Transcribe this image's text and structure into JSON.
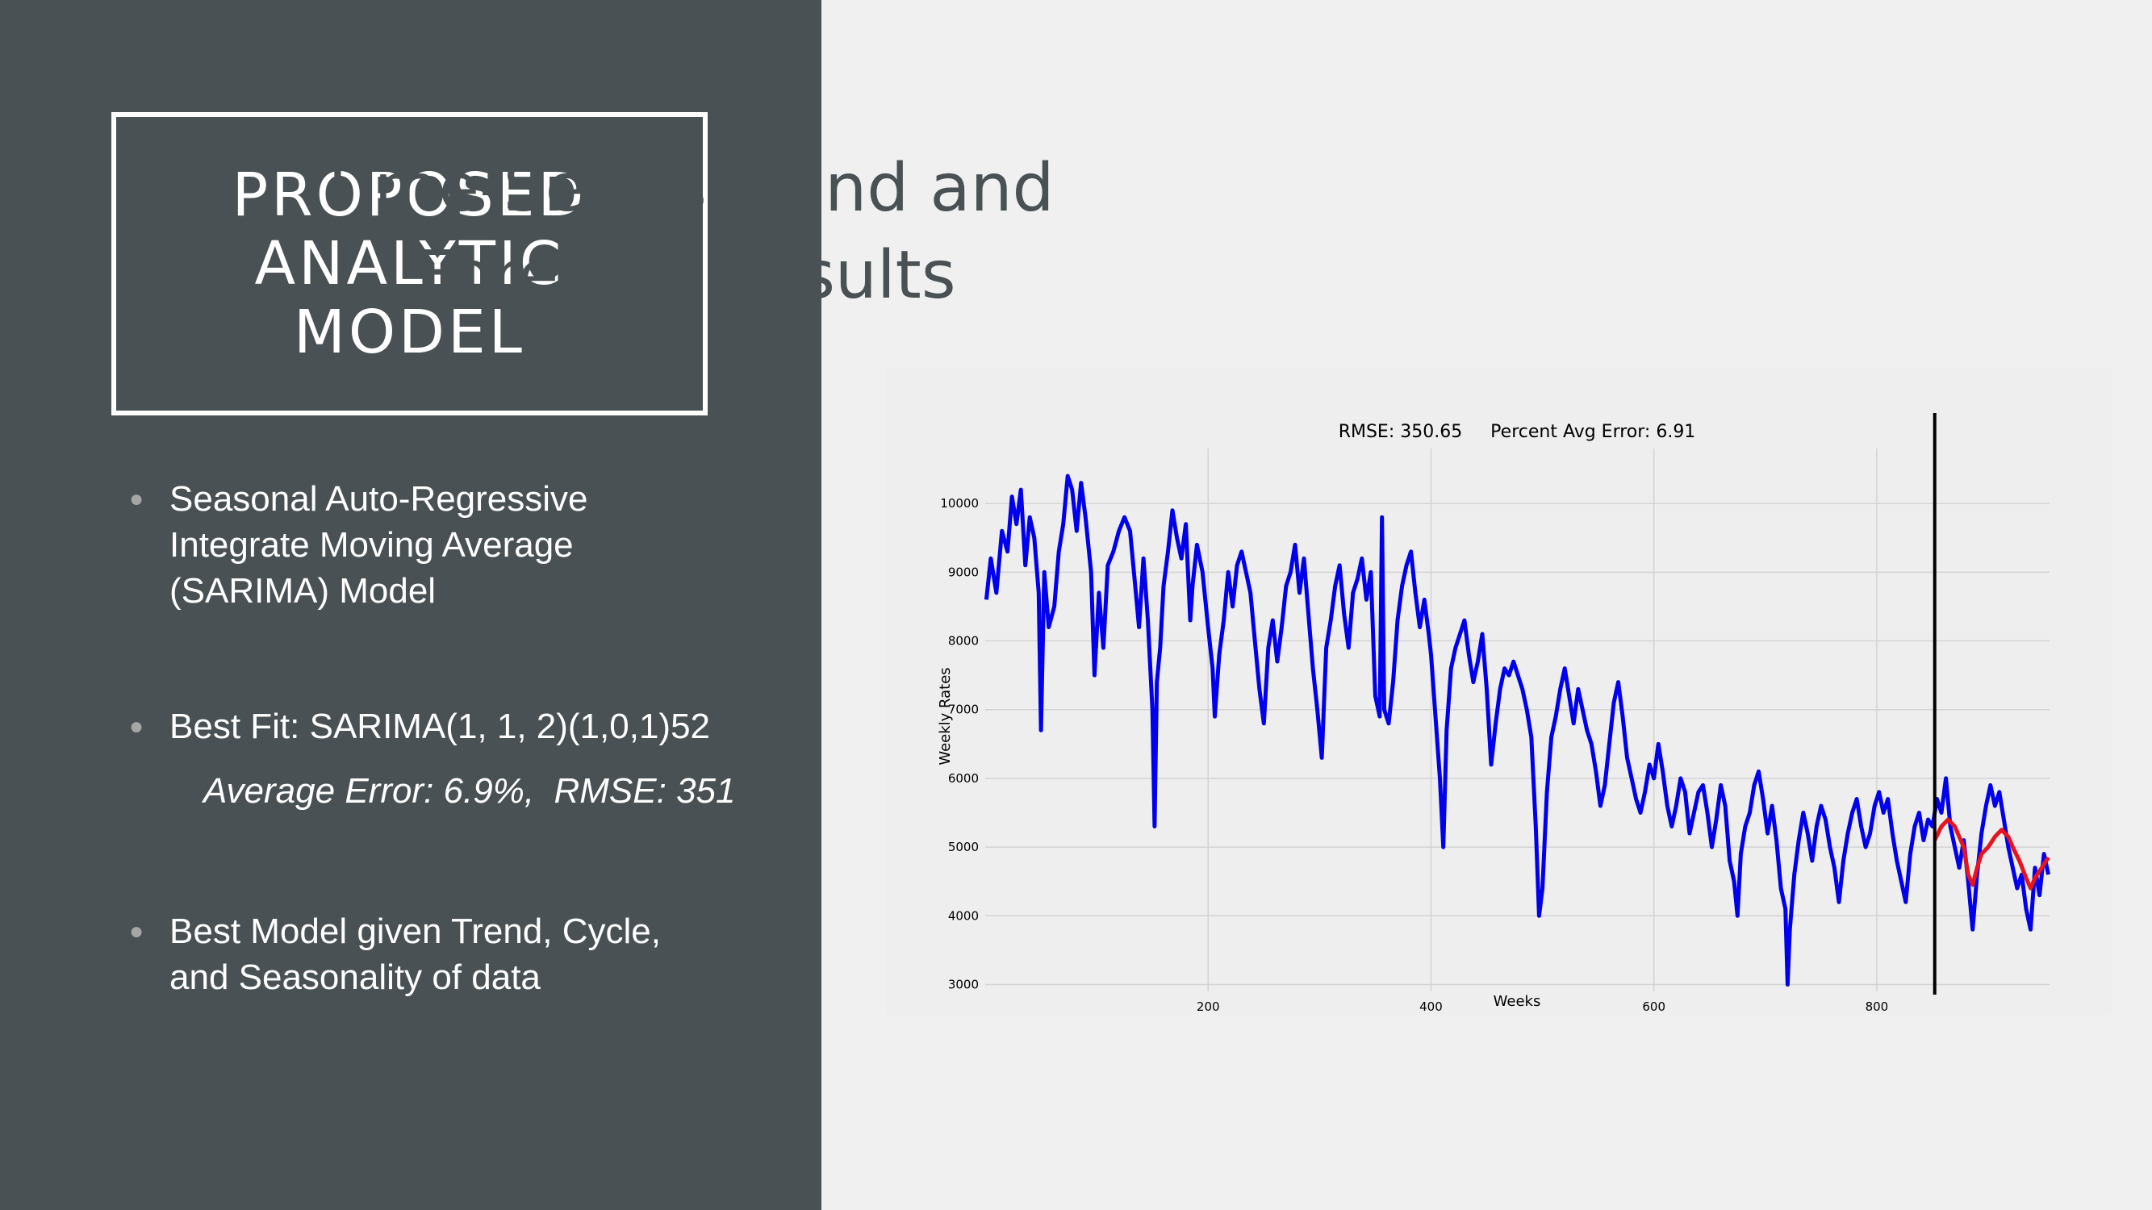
{
  "left": {
    "title_lines": [
      "PROPOSED",
      "ANALYTIC",
      "MODEL"
    ],
    "bullets": [
      {
        "lines": [
          "Seasonal Auto-Regressive",
          "Integrate Moving Average",
          "(SARIMA) Model"
        ]
      },
      {
        "lines": [
          "Best Fit: SARIMA(1, 1, 2)(1,0,1)52"
        ],
        "sub": "Average Error: 6.9%,  RMSE: 351"
      },
      {
        "lines": [
          "Best Model given Trend, Cycle,",
          "and Seasonality of data"
        ]
      }
    ]
  },
  "right": {
    "title_lines": [
      "Time-Series Trend and",
      "Forecast Results"
    ]
  },
  "colors": {
    "left_panel": "#495154",
    "right_panel": "#f0f0f0",
    "actual_series": "#0000ee",
    "forecast_series": "#e8131c",
    "split_line": "#000000"
  },
  "chart_data": {
    "type": "line",
    "title": "RMSE: 350.65     Percent Avg Error: 6.91",
    "xlabel": "Weeks",
    "ylabel": "Weekly Rates",
    "xlim": [
      0,
      955
    ],
    "ylim": [
      2900,
      10800
    ],
    "xticks": [
      200,
      400,
      600,
      800
    ],
    "yticks": [
      3000,
      4000,
      5000,
      6000,
      7000,
      8000,
      9000,
      10000
    ],
    "grid": true,
    "split_x": 852,
    "series": [
      {
        "key": "actual",
        "color": "#0000ee",
        "points": [
          [
            1,
            8600
          ],
          [
            5,
            9200
          ],
          [
            10,
            8700
          ],
          [
            15,
            9600
          ],
          [
            20,
            9300
          ],
          [
            24,
            10100
          ],
          [
            28,
            9700
          ],
          [
            32,
            10200
          ],
          [
            36,
            9100
          ],
          [
            40,
            9800
          ],
          [
            44,
            9500
          ],
          [
            48,
            8700
          ],
          [
            50,
            6700
          ],
          [
            53,
            9000
          ],
          [
            57,
            8200
          ],
          [
            62,
            8500
          ],
          [
            66,
            9300
          ],
          [
            70,
            9700
          ],
          [
            74,
            10400
          ],
          [
            78,
            10200
          ],
          [
            82,
            9600
          ],
          [
            86,
            10300
          ],
          [
            90,
            9800
          ],
          [
            95,
            9000
          ],
          [
            98,
            7500
          ],
          [
            102,
            8700
          ],
          [
            106,
            7900
          ],
          [
            110,
            9100
          ],
          [
            115,
            9300
          ],
          [
            120,
            9600
          ],
          [
            125,
            9800
          ],
          [
            130,
            9600
          ],
          [
            134,
            8900
          ],
          [
            138,
            8200
          ],
          [
            142,
            9200
          ],
          [
            146,
            8300
          ],
          [
            150,
            7000
          ],
          [
            152,
            5300
          ],
          [
            154,
            7400
          ],
          [
            157,
            7900
          ],
          [
            160,
            8800
          ],
          [
            164,
            9300
          ],
          [
            168,
            9900
          ],
          [
            172,
            9500
          ],
          [
            176,
            9200
          ],
          [
            180,
            9700
          ],
          [
            184,
            8300
          ],
          [
            186,
            8800
          ],
          [
            190,
            9400
          ],
          [
            195,
            9000
          ],
          [
            200,
            8200
          ],
          [
            204,
            7600
          ],
          [
            206,
            6900
          ],
          [
            210,
            7800
          ],
          [
            214,
            8300
          ],
          [
            218,
            9000
          ],
          [
            222,
            8500
          ],
          [
            226,
            9100
          ],
          [
            230,
            9300
          ],
          [
            234,
            9000
          ],
          [
            238,
            8700
          ],
          [
            242,
            8000
          ],
          [
            246,
            7300
          ],
          [
            250,
            6800
          ],
          [
            254,
            7900
          ],
          [
            258,
            8300
          ],
          [
            262,
            7700
          ],
          [
            266,
            8200
          ],
          [
            270,
            8800
          ],
          [
            274,
            9000
          ],
          [
            278,
            9400
          ],
          [
            282,
            8700
          ],
          [
            286,
            9200
          ],
          [
            290,
            8400
          ],
          [
            294,
            7600
          ],
          [
            298,
            7000
          ],
          [
            302,
            6300
          ],
          [
            306,
            7900
          ],
          [
            310,
            8300
          ],
          [
            314,
            8800
          ],
          [
            318,
            9100
          ],
          [
            322,
            8400
          ],
          [
            326,
            7900
          ],
          [
            330,
            8700
          ],
          [
            334,
            8900
          ],
          [
            338,
            9200
          ],
          [
            342,
            8600
          ],
          [
            346,
            9000
          ],
          [
            350,
            7200
          ],
          [
            354,
            6900
          ],
          [
            356,
            9800
          ],
          [
            358,
            7000
          ],
          [
            362,
            6800
          ],
          [
            366,
            7400
          ],
          [
            370,
            8300
          ],
          [
            374,
            8800
          ],
          [
            378,
            9100
          ],
          [
            382,
            9300
          ],
          [
            386,
            8700
          ],
          [
            390,
            8200
          ],
          [
            394,
            8600
          ],
          [
            398,
            8100
          ],
          [
            400,
            7800
          ],
          [
            404,
            6900
          ],
          [
            408,
            6000
          ],
          [
            411,
            5000
          ],
          [
            414,
            6700
          ],
          [
            418,
            7600
          ],
          [
            422,
            7900
          ],
          [
            426,
            8100
          ],
          [
            430,
            8300
          ],
          [
            434,
            7800
          ],
          [
            438,
            7400
          ],
          [
            442,
            7700
          ],
          [
            446,
            8100
          ],
          [
            450,
            7300
          ],
          [
            454,
            6200
          ],
          [
            458,
            6800
          ],
          [
            462,
            7300
          ],
          [
            466,
            7600
          ],
          [
            470,
            7500
          ],
          [
            474,
            7700
          ],
          [
            478,
            7500
          ],
          [
            482,
            7300
          ],
          [
            486,
            7000
          ],
          [
            490,
            6600
          ],
          [
            494,
            5300
          ],
          [
            497,
            4000
          ],
          [
            500,
            4400
          ],
          [
            504,
            5800
          ],
          [
            508,
            6600
          ],
          [
            512,
            6900
          ],
          [
            516,
            7300
          ],
          [
            520,
            7600
          ],
          [
            524,
            7200
          ],
          [
            528,
            6800
          ],
          [
            532,
            7300
          ],
          [
            536,
            7000
          ],
          [
            540,
            6700
          ],
          [
            544,
            6500
          ],
          [
            548,
            6100
          ],
          [
            552,
            5600
          ],
          [
            556,
            5900
          ],
          [
            560,
            6500
          ],
          [
            564,
            7100
          ],
          [
            568,
            7400
          ],
          [
            572,
            6900
          ],
          [
            576,
            6300
          ],
          [
            580,
            6000
          ],
          [
            584,
            5700
          ],
          [
            588,
            5500
          ],
          [
            592,
            5800
          ],
          [
            596,
            6200
          ],
          [
            600,
            6000
          ],
          [
            604,
            6500
          ],
          [
            608,
            6100
          ],
          [
            612,
            5600
          ],
          [
            616,
            5300
          ],
          [
            620,
            5600
          ],
          [
            624,
            6000
          ],
          [
            628,
            5800
          ],
          [
            632,
            5200
          ],
          [
            636,
            5500
          ],
          [
            640,
            5800
          ],
          [
            644,
            5900
          ],
          [
            648,
            5500
          ],
          [
            652,
            5000
          ],
          [
            656,
            5400
          ],
          [
            660,
            5900
          ],
          [
            664,
            5600
          ],
          [
            668,
            4800
          ],
          [
            672,
            4500
          ],
          [
            675,
            4000
          ],
          [
            678,
            4900
          ],
          [
            682,
            5300
          ],
          [
            686,
            5500
          ],
          [
            690,
            5900
          ],
          [
            694,
            6100
          ],
          [
            698,
            5700
          ],
          [
            702,
            5200
          ],
          [
            706,
            5600
          ],
          [
            710,
            5100
          ],
          [
            714,
            4400
          ],
          [
            718,
            4100
          ],
          [
            720,
            3000
          ],
          [
            722,
            3800
          ],
          [
            726,
            4600
          ],
          [
            730,
            5100
          ],
          [
            734,
            5500
          ],
          [
            738,
            5200
          ],
          [
            742,
            4800
          ],
          [
            746,
            5300
          ],
          [
            750,
            5600
          ],
          [
            754,
            5400
          ],
          [
            758,
            5000
          ],
          [
            762,
            4700
          ],
          [
            766,
            4200
          ],
          [
            770,
            4800
          ],
          [
            774,
            5200
          ],
          [
            778,
            5500
          ],
          [
            782,
            5700
          ],
          [
            786,
            5300
          ],
          [
            790,
            5000
          ],
          [
            794,
            5200
          ],
          [
            798,
            5600
          ],
          [
            802,
            5800
          ],
          [
            806,
            5500
          ],
          [
            810,
            5700
          ],
          [
            814,
            5200
          ],
          [
            818,
            4800
          ],
          [
            822,
            4500
          ],
          [
            826,
            4200
          ],
          [
            830,
            4900
          ],
          [
            834,
            5300
          ],
          [
            838,
            5500
          ],
          [
            842,
            5100
          ],
          [
            846,
            5400
          ],
          [
            850,
            5300
          ],
          [
            854,
            5700
          ],
          [
            858,
            5500
          ],
          [
            862,
            6000
          ],
          [
            866,
            5300
          ],
          [
            870,
            5000
          ],
          [
            874,
            4700
          ],
          [
            878,
            5100
          ],
          [
            882,
            4500
          ],
          [
            886,
            3800
          ],
          [
            890,
            4600
          ],
          [
            894,
            5200
          ],
          [
            898,
            5600
          ],
          [
            902,
            5900
          ],
          [
            906,
            5600
          ],
          [
            910,
            5800
          ],
          [
            914,
            5400
          ],
          [
            918,
            5000
          ],
          [
            922,
            4700
          ],
          [
            926,
            4400
          ],
          [
            930,
            4600
          ],
          [
            934,
            4100
          ],
          [
            938,
            3800
          ],
          [
            942,
            4700
          ],
          [
            946,
            4300
          ],
          [
            950,
            4900
          ],
          [
            954,
            4600
          ]
        ]
      },
      {
        "key": "forecast",
        "color": "#e8131c",
        "points": [
          [
            852,
            5100
          ],
          [
            858,
            5300
          ],
          [
            864,
            5400
          ],
          [
            870,
            5300
          ],
          [
            874,
            5150
          ],
          [
            878,
            5000
          ],
          [
            882,
            4600
          ],
          [
            886,
            4450
          ],
          [
            890,
            4700
          ],
          [
            894,
            4900
          ],
          [
            900,
            5000
          ],
          [
            906,
            5150
          ],
          [
            912,
            5250
          ],
          [
            918,
            5150
          ],
          [
            922,
            5000
          ],
          [
            928,
            4800
          ],
          [
            934,
            4550
          ],
          [
            938,
            4400
          ],
          [
            942,
            4550
          ],
          [
            948,
            4700
          ],
          [
            954,
            4850
          ]
        ]
      }
    ]
  }
}
